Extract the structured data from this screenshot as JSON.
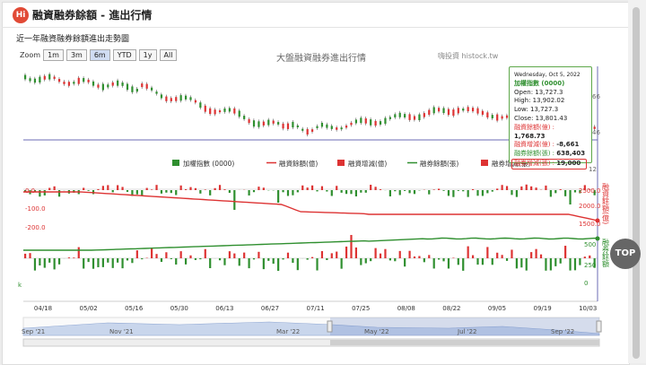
{
  "header": {
    "logo_text": "Hi",
    "title": "融資融券餘額 - 進出行情"
  },
  "subtitle": "近一年融資融券餘額進出走勢圖",
  "zoom": {
    "label": "Zoom",
    "options": [
      "1m",
      "3m",
      "6m",
      "YTD",
      "1y",
      "All"
    ],
    "selected": "6m"
  },
  "chart_title": "大盤融資融券進出行情",
  "watermark": "嗨投資 histock.tw",
  "legend": [
    {
      "label": "加權指數 (0000)",
      "color": "#2f8f2f",
      "kind": "box"
    },
    {
      "label": "融資餘額(億)",
      "color": "#d33",
      "kind": "line"
    },
    {
      "label": "融資增減(億)",
      "color": "#d33",
      "kind": "box"
    },
    {
      "label": "融券餘額(張)",
      "color": "#2f8f2f",
      "kind": "line"
    },
    {
      "label": "融券增減(張)",
      "color": "#d33",
      "kind": "box"
    }
  ],
  "tooltip": {
    "date": "Wednesday, Oct 5, 2022",
    "index_name": "加權指數 (0000)",
    "open": "Open: 13,727.3",
    "high": "High: 13,902.02",
    "low": "Low: 13,727.3",
    "close": "Close: 13,801.43",
    "margin_balance_label": "融資餘額(億) :",
    "margin_balance_value": "1,768.73",
    "margin_change_label": "融資增減(億) :",
    "margin_change_value": "-8,661",
    "short_balance_label": "融券餘額(張) :",
    "short_balance_value": "638,403",
    "short_change_label": "融券增減(張) :",
    "short_change_value": "19,000"
  },
  "axis": {
    "top_right": [
      "66",
      "46",
      "12"
    ],
    "mid_left": [
      "0.0",
      "-100.0",
      "-200.0"
    ],
    "mid_right": [
      "2500.0",
      "2000.0",
      "1500.0"
    ],
    "mid_right_title": "融資餘額(億)",
    "low_right": [
      "500",
      "250",
      "0"
    ],
    "low_right_title": "融券餘額",
    "low_left": "k",
    "x_labels": [
      "04/18",
      "05/02",
      "05/16",
      "05/30",
      "06/13",
      "06/27",
      "07/11",
      "07/25",
      "08/08",
      "08/22",
      "09/05",
      "09/19",
      "10/03"
    ],
    "nav_labels": [
      "Sep '21",
      "Nov '21",
      "Mar '22",
      "May '22",
      "Jul '22",
      "Sep '22"
    ]
  },
  "scroll_top": "TOP",
  "colors": {
    "up": "#d33",
    "down": "#2f8f2f",
    "margin_line": "#d33",
    "short_line": "#2f8f2f"
  },
  "chart_data": {
    "type": "line",
    "x_start": "04/18",
    "x_end": "10/05",
    "series": [
      {
        "name": "加權指數 (0000)",
        "approx_range": [
          13727.3,
          17000
        ],
        "last_close": 13801.43
      },
      {
        "name": "融資餘額(億)",
        "last": 1768.73
      },
      {
        "name": "融資增減(億)",
        "last": -8661
      },
      {
        "name": "融券餘額(張)",
        "last": 638403
      },
      {
        "name": "融券增減(張)",
        "last": 19000
      }
    ]
  }
}
